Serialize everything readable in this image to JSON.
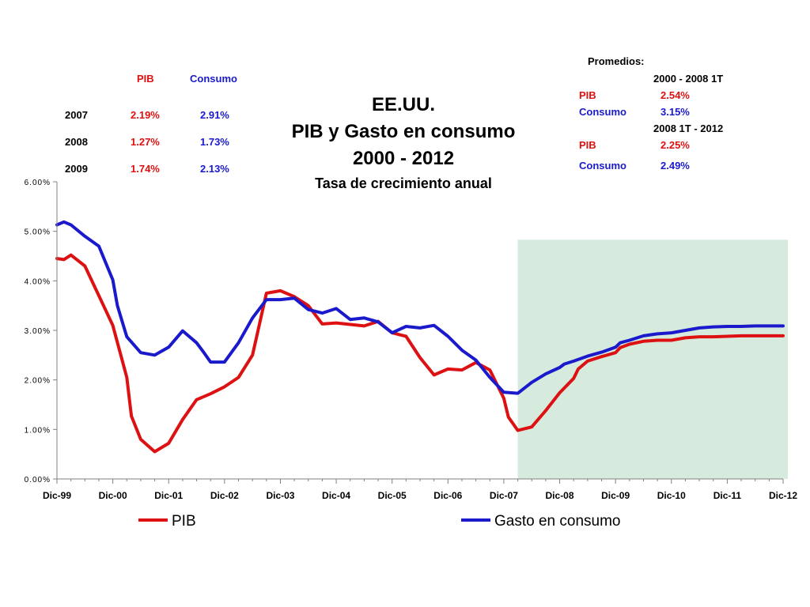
{
  "colors": {
    "pib": "#dd1111",
    "consumo": "#1a1acc",
    "shade": "#d6ebde",
    "axis": "#808080"
  },
  "title": {
    "line1": "EE.UU.",
    "line2": "PIB y Gasto en consumo",
    "line3": "2000 - 2012",
    "subtitle": "Tasa de crecimiento anual"
  },
  "annual_table": {
    "headers": [
      "PIB",
      "Consumo"
    ],
    "rows": [
      {
        "year": "2007",
        "pib": "2.19%",
        "consumo": "2.91%"
      },
      {
        "year": "2008",
        "pib": "1.27%",
        "consumo": "1.73%"
      },
      {
        "year": "2009",
        "pib": "1.74%",
        "consumo": "2.13%"
      }
    ]
  },
  "averages": {
    "heading": "Promedios:",
    "period1": "2000 - 2008 1T",
    "period1_pib_label": "PIB",
    "period1_pib": "2.54%",
    "period1_consumo_label": "Consumo",
    "period1_consumo": "3.15%",
    "period2": "2008 1T - 2012",
    "period2_pib_label": "PIB",
    "period2_pib": "2.25%",
    "period2_consumo_label": "Consumo",
    "period2_consumo": "2.49%"
  },
  "chart_data": {
    "type": "line",
    "title": "EE.UU. PIB y Gasto en consumo 2000 - 2012",
    "subtitle": "Tasa de crecimiento anual",
    "xlabel": "",
    "ylabel": "",
    "x_ticks": [
      "Dic-99",
      "Dic-00",
      "Dic-01",
      "Dic-02",
      "Dic-03",
      "Dic-04",
      "Dic-05",
      "Dic-06",
      "Dic-07",
      "Dic-08",
      "Dic-09",
      "Dic-10",
      "Dic-11",
      "Dic-12"
    ],
    "y_ticks": [
      "0.00%",
      "1.00%",
      "2.00%",
      "3.00%",
      "4.00%",
      "5.00%",
      "6.00%"
    ],
    "ylim": [
      0,
      6
    ],
    "x_range": [
      0,
      52
    ],
    "shaded_region": {
      "x_start": 33,
      "x_end": 52,
      "y_top": 4.83
    },
    "legend_position": "bottom",
    "series": [
      {
        "name": "PIB",
        "x": [
          0,
          0.5,
          1,
          2,
          3,
          4,
          5,
          5.33,
          6,
          7,
          8,
          9,
          10,
          11,
          12,
          13,
          14,
          15,
          16,
          17,
          18,
          19,
          20,
          21,
          22,
          23,
          24,
          25,
          26,
          27,
          28,
          29,
          30,
          31,
          32,
          32.33,
          33,
          34,
          35,
          36,
          37,
          37.33,
          38,
          39,
          40,
          40.33,
          41,
          42,
          43,
          44,
          45,
          46,
          47,
          48,
          49,
          50,
          51,
          52
        ],
        "values": [
          4.45,
          4.43,
          4.52,
          4.3,
          3.7,
          3.1,
          2.05,
          1.27,
          0.8,
          0.55,
          0.72,
          1.2,
          1.6,
          1.72,
          1.86,
          2.05,
          2.5,
          3.75,
          3.8,
          3.68,
          3.5,
          3.13,
          3.15,
          3.12,
          3.09,
          3.18,
          2.95,
          2.88,
          2.45,
          2.1,
          2.22,
          2.2,
          2.35,
          2.2,
          1.63,
          1.25,
          0.98,
          1.05,
          1.38,
          1.74,
          2.03,
          2.22,
          2.38,
          2.47,
          2.55,
          2.65,
          2.72,
          2.78,
          2.8,
          2.8,
          2.85,
          2.87,
          2.87,
          2.88,
          2.89,
          2.89,
          2.89,
          2.89
        ]
      },
      {
        "name": "Gasto en consumo",
        "x": [
          0,
          0.5,
          1,
          2,
          3,
          4,
          4.33,
          5,
          6,
          7,
          8,
          9,
          10,
          10.5,
          11,
          12,
          13,
          14,
          15,
          16,
          17,
          18,
          19,
          20,
          21,
          22,
          23,
          24,
          25,
          26,
          27,
          28,
          29,
          30,
          31,
          32,
          33,
          34,
          35,
          36,
          36.33,
          37,
          38,
          39,
          40,
          40.33,
          41,
          42,
          43,
          44,
          45,
          46,
          47,
          48,
          49,
          50,
          51,
          52
        ],
        "values": [
          5.13,
          5.19,
          5.13,
          4.9,
          4.7,
          4.02,
          3.5,
          2.87,
          2.55,
          2.5,
          2.66,
          2.99,
          2.75,
          2.56,
          2.36,
          2.36,
          2.75,
          3.25,
          3.62,
          3.62,
          3.65,
          3.42,
          3.35,
          3.44,
          3.22,
          3.25,
          3.17,
          2.95,
          3.08,
          3.05,
          3.1,
          2.88,
          2.6,
          2.4,
          2.05,
          1.75,
          1.73,
          1.95,
          2.12,
          2.25,
          2.32,
          2.38,
          2.48,
          2.56,
          2.66,
          2.75,
          2.8,
          2.89,
          2.93,
          2.95,
          3.0,
          3.05,
          3.07,
          3.08,
          3.08,
          3.09,
          3.09,
          3.09
        ]
      }
    ]
  }
}
